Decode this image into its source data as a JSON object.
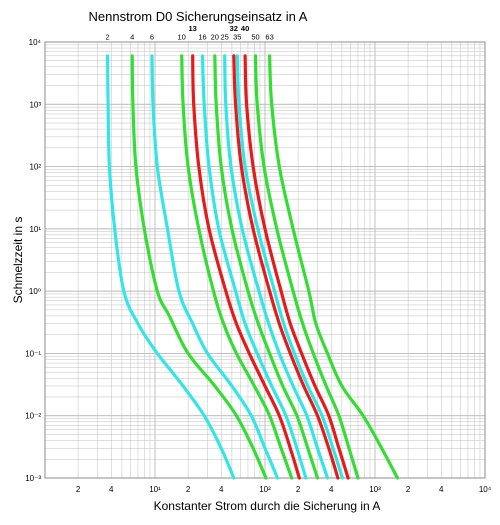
{
  "chart_data": {
    "type": "line",
    "title": "Nennstrom D0 Sicherungseinsatz in A",
    "xlabel": "Konstanter Strom durch die Sicherung in A",
    "ylabel": "Schmelzzeit in s",
    "x_scale": "log",
    "y_scale": "log",
    "xlim": [
      1,
      10000
    ],
    "ylim": [
      0.001,
      10000
    ],
    "grid": true,
    "x_tick_labels": [
      {
        "value": 2,
        "label": "2"
      },
      {
        "value": 4,
        "label": "4"
      },
      {
        "value": 10,
        "label": "10¹"
      },
      {
        "value": 20,
        "label": "2"
      },
      {
        "value": 40,
        "label": "4"
      },
      {
        "value": 100,
        "label": "10²"
      },
      {
        "value": 200,
        "label": "2"
      },
      {
        "value": 400,
        "label": "4"
      },
      {
        "value": 1000,
        "label": "10³"
      },
      {
        "value": 2000,
        "label": "2"
      },
      {
        "value": 4000,
        "label": "4"
      },
      {
        "value": 10000,
        "label": "10⁴"
      }
    ],
    "y_tick_labels": [
      {
        "value": 0.001,
        "label": "10⁻³"
      },
      {
        "value": 0.01,
        "label": "10⁻²"
      },
      {
        "value": 0.1,
        "label": "10⁻¹"
      },
      {
        "value": 1,
        "label": "10⁰"
      },
      {
        "value": 10,
        "label": "10¹"
      },
      {
        "value": 100,
        "label": "10²"
      },
      {
        "value": 1000,
        "label": "10³"
      },
      {
        "value": 10000,
        "label": "10⁴"
      }
    ],
    "colors": {
      "cyan": "#33e6e6",
      "green": "#33dd33",
      "red": "#e61a1a",
      "grid": "#c0c0c0"
    },
    "series": [
      {
        "name": "2",
        "color": "cyan",
        "bold": false,
        "points": [
          [
            3.7,
            6000
          ],
          [
            3.75,
            1000
          ],
          [
            3.85,
            100
          ],
          [
            4.3,
            10
          ],
          [
            5.2,
            1
          ],
          [
            7.0,
            0.3
          ],
          [
            10.5,
            0.1
          ],
          [
            18,
            0.03
          ],
          [
            28,
            0.01
          ],
          [
            40,
            0.003
          ],
          [
            52,
            0.001
          ]
        ]
      },
      {
        "name": "4",
        "color": "green",
        "bold": false,
        "points": [
          [
            6.2,
            6000
          ],
          [
            6.3,
            1000
          ],
          [
            6.7,
            100
          ],
          [
            8,
            10
          ],
          [
            10.5,
            1
          ],
          [
            13.5,
            0.4
          ],
          [
            20,
            0.1
          ],
          [
            35,
            0.03
          ],
          [
            55,
            0.01
          ],
          [
            78,
            0.003
          ],
          [
            102,
            0.001
          ]
        ]
      },
      {
        "name": "6",
        "color": "cyan",
        "bold": false,
        "points": [
          [
            9.4,
            6000
          ],
          [
            9.6,
            1000
          ],
          [
            10.5,
            100
          ],
          [
            13,
            10
          ],
          [
            16.5,
            1
          ],
          [
            22,
            0.3
          ],
          [
            30,
            0.1
          ],
          [
            50,
            0.03
          ],
          [
            75,
            0.01
          ],
          [
            100,
            0.003
          ],
          [
            130,
            0.001
          ]
        ]
      },
      {
        "name": "10",
        "color": "green",
        "bold": false,
        "points": [
          [
            17.5,
            6000
          ],
          [
            18,
            1000
          ],
          [
            20,
            100
          ],
          [
            25,
            10
          ],
          [
            34,
            1
          ],
          [
            42,
            0.3
          ],
          [
            55,
            0.1
          ],
          [
            80,
            0.03
          ],
          [
            110,
            0.01
          ],
          [
            140,
            0.003
          ],
          [
            175,
            0.001
          ]
        ]
      },
      {
        "name": "13",
        "color": "red",
        "bold": true,
        "points": [
          [
            22,
            6000
          ],
          [
            22.5,
            1000
          ],
          [
            25,
            100
          ],
          [
            31,
            10
          ],
          [
            44,
            1
          ],
          [
            55,
            0.3
          ],
          [
            72,
            0.1
          ],
          [
            100,
            0.03
          ],
          [
            135,
            0.01
          ],
          [
            170,
            0.003
          ],
          [
            205,
            0.001
          ]
        ]
      },
      {
        "name": "16",
        "color": "cyan",
        "bold": false,
        "points": [
          [
            27,
            6000
          ],
          [
            28,
            1000
          ],
          [
            31,
            100
          ],
          [
            38,
            10
          ],
          [
            54,
            1
          ],
          [
            66,
            0.3
          ],
          [
            85,
            0.1
          ],
          [
            115,
            0.03
          ],
          [
            155,
            0.01
          ],
          [
            195,
            0.003
          ],
          [
            235,
            0.001
          ]
        ]
      },
      {
        "name": "20",
        "color": "green",
        "bold": false,
        "points": [
          [
            35,
            6000
          ],
          [
            36,
            1000
          ],
          [
            40,
            100
          ],
          [
            50,
            10
          ],
          [
            70,
            1
          ],
          [
            87,
            0.3
          ],
          [
            110,
            0.1
          ],
          [
            145,
            0.03
          ],
          [
            195,
            0.01
          ],
          [
            245,
            0.003
          ],
          [
            300,
            0.001
          ]
        ]
      },
      {
        "name": "25",
        "color": "cyan",
        "bold": false,
        "points": [
          [
            43,
            6000
          ],
          [
            44,
            1000
          ],
          [
            49,
            100
          ],
          [
            62,
            10
          ],
          [
            88,
            1
          ],
          [
            108,
            0.3
          ],
          [
            135,
            0.1
          ],
          [
            180,
            0.03
          ],
          [
            240,
            0.01
          ],
          [
            300,
            0.003
          ],
          [
            370,
            0.001
          ]
        ]
      },
      {
        "name": "32",
        "color": "red",
        "bold": true,
        "points": [
          [
            52,
            6000
          ],
          [
            54,
            1000
          ],
          [
            61,
            100
          ],
          [
            78,
            10
          ],
          [
            110,
            1
          ],
          [
            135,
            0.3
          ],
          [
            170,
            0.1
          ],
          [
            225,
            0.03
          ],
          [
            300,
            0.01
          ],
          [
            380,
            0.003
          ],
          [
            460,
            0.001
          ]
        ]
      },
      {
        "name": "35",
        "color": "cyan",
        "bold": false,
        "points": [
          [
            56,
            6000
          ],
          [
            58,
            1000
          ],
          [
            66,
            100
          ],
          [
            86,
            10
          ],
          [
            122,
            1
          ],
          [
            148,
            0.3
          ],
          [
            185,
            0.1
          ],
          [
            245,
            0.03
          ],
          [
            330,
            0.01
          ],
          [
            415,
            0.003
          ],
          [
            505,
            0.001
          ]
        ]
      },
      {
        "name": "40",
        "color": "red",
        "bold": true,
        "points": [
          [
            66,
            6000
          ],
          [
            68,
            1000
          ],
          [
            78,
            100
          ],
          [
            100,
            10
          ],
          [
            140,
            1
          ],
          [
            170,
            0.3
          ],
          [
            215,
            0.1
          ],
          [
            285,
            0.03
          ],
          [
            380,
            0.01
          ],
          [
            470,
            0.003
          ],
          [
            570,
            0.001
          ]
        ]
      },
      {
        "name": "50",
        "color": "green",
        "bold": false,
        "points": [
          [
            82,
            6000
          ],
          [
            85,
            1000
          ],
          [
            98,
            100
          ],
          [
            128,
            10
          ],
          [
            180,
            1
          ],
          [
            220,
            0.3
          ],
          [
            275,
            0.1
          ],
          [
            360,
            0.03
          ],
          [
            470,
            0.01
          ],
          [
            580,
            0.003
          ],
          [
            700,
            0.001
          ]
        ]
      },
      {
        "name": "63",
        "color": "green",
        "bold": false,
        "points": [
          [
            110,
            6000
          ],
          [
            115,
            1000
          ],
          [
            135,
            100
          ],
          [
            180,
            10
          ],
          [
            250,
            1
          ],
          [
            290,
            0.3
          ],
          [
            370,
            0.1
          ],
          [
            500,
            0.03
          ],
          [
            780,
            0.01
          ],
          [
            1150,
            0.003
          ],
          [
            1600,
            0.001
          ]
        ]
      }
    ]
  }
}
